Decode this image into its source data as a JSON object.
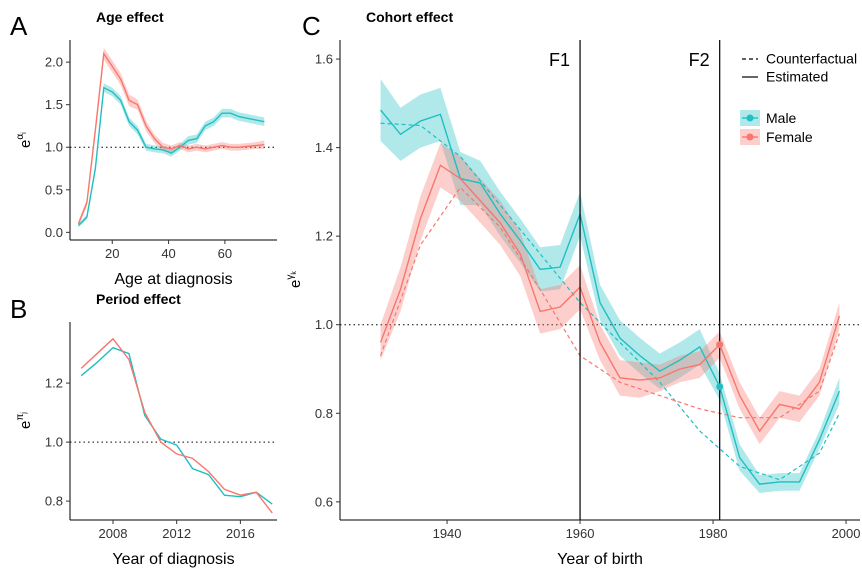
{
  "chart_data": [
    {
      "type": "line",
      "panel": "A",
      "title": "Age effect",
      "xlabel": "Age at diagnosis",
      "ylabel": {
        "base": "e",
        "sup": "α",
        "sub": "i"
      },
      "xlim": [
        5,
        78.5
      ],
      "xticks": [
        20,
        40,
        60
      ],
      "ylim": [
        -0.09,
        2.26
      ],
      "yticks": [
        {
          "value": 0,
          "label": "0.0"
        },
        0.5,
        {
          "value": 1,
          "label": "1.0"
        },
        1.5,
        {
          "value": 2,
          "label": "2.0"
        }
      ],
      "refline": 1,
      "x": [
        8,
        11,
        14,
        17,
        20,
        23,
        26,
        29,
        32,
        35,
        38,
        41,
        44,
        47,
        50,
        53,
        56,
        59,
        62,
        65,
        68,
        71,
        74
      ],
      "series": [
        {
          "name": "Male",
          "color": "#1fbfc4",
          "values": [
            0.08,
            0.18,
            0.75,
            1.7,
            1.65,
            1.55,
            1.3,
            1.2,
            1.0,
            0.98,
            0.97,
            0.93,
            1.0,
            1.08,
            1.1,
            1.25,
            1.3,
            1.4,
            1.4,
            1.36,
            1.34,
            1.32,
            1.3
          ],
          "error": [
            0.02,
            0.03,
            0.04,
            0.05,
            0.05,
            0.05,
            0.05,
            0.05,
            0.04,
            0.04,
            0.04,
            0.04,
            0.04,
            0.05,
            0.05,
            0.05,
            0.05,
            0.05,
            0.05,
            0.05,
            0.05,
            0.05,
            0.05
          ]
        },
        {
          "name": "Female",
          "color": "#f8766d",
          "values": [
            0.1,
            0.35,
            1.2,
            2.1,
            1.95,
            1.8,
            1.55,
            1.5,
            1.25,
            1.1,
            1.0,
            0.98,
            1.02,
            0.98,
            1.0,
            0.98,
            1.0,
            1.02,
            1.0,
            1.0,
            1.01,
            1.02,
            1.03
          ],
          "error": [
            0.03,
            0.04,
            0.06,
            0.07,
            0.07,
            0.07,
            0.07,
            0.06,
            0.06,
            0.05,
            0.05,
            0.04,
            0.04,
            0.04,
            0.04,
            0.04,
            0.04,
            0.04,
            0.04,
            0.04,
            0.04,
            0.04,
            0.05
          ]
        }
      ]
    },
    {
      "type": "line",
      "panel": "B",
      "title": "Period effect",
      "xlabel": "Year of diagnosis",
      "ylabel": {
        "base": "e",
        "sup": "π",
        "sub": "j"
      },
      "xlim": [
        2005.3,
        2018.3
      ],
      "xticks": [
        2008,
        2012,
        2016
      ],
      "ylim": [
        0.736,
        1.407
      ],
      "yticks": [
        0.8,
        {
          "value": 1,
          "label": "1.0"
        },
        1.2
      ],
      "refline": 1,
      "x": [
        2006,
        2007,
        2008,
        2009,
        2010,
        2011,
        2012,
        2013,
        2014,
        2015,
        2016,
        2017,
        2018
      ],
      "series": [
        {
          "name": "Male",
          "color": "#1fbfc4",
          "values": [
            1.225,
            1.27,
            1.32,
            1.3,
            1.09,
            1.01,
            0.99,
            0.91,
            0.89,
            0.82,
            0.815,
            0.83,
            0.79
          ]
        },
        {
          "name": "Female",
          "color": "#f8766d",
          "values": [
            1.25,
            1.3,
            1.35,
            1.28,
            1.1,
            1.0,
            0.96,
            0.945,
            0.9,
            0.84,
            0.82,
            0.83,
            0.76
          ]
        }
      ]
    },
    {
      "type": "line",
      "panel": "C",
      "title": "Cohort effect",
      "xlabel": "Year of birth",
      "ylabel": {
        "base": "e",
        "sup": "γ",
        "sub": "k"
      },
      "xlim": [
        1923.9,
        2002.1
      ],
      "xticks": [
        1940,
        1960,
        1980,
        2000
      ],
      "ylim": [
        0.559,
        1.643
      ],
      "yticks": [
        0.6,
        0.8,
        {
          "value": 1,
          "label": "1.0"
        },
        1.2,
        1.4,
        1.6
      ],
      "refline": 1,
      "vlines": [
        {
          "value": 1960,
          "label": "F1"
        },
        {
          "value": 1981,
          "label": "F2"
        }
      ],
      "linetype_legend": [
        "Counterfactual",
        "Estimated"
      ],
      "x": [
        1930,
        1933,
        1936,
        1939,
        1942,
        1945,
        1948,
        1951,
        1954,
        1957,
        1960,
        1963,
        1966,
        1969,
        1972,
        1975,
        1978,
        1981,
        1984,
        1987,
        1990,
        1993,
        1996,
        1999
      ],
      "series": [
        {
          "name": "Male",
          "color": "#1fbfc4",
          "values": [
            1.485,
            1.43,
            1.46,
            1.475,
            1.33,
            1.32,
            1.25,
            1.19,
            1.125,
            1.13,
            1.25,
            1.05,
            0.97,
            0.93,
            0.895,
            0.92,
            0.95,
            0.86,
            0.7,
            0.64,
            0.645,
            0.645,
            0.74,
            0.85
          ],
          "error": [
            0.07,
            0.06,
            0.06,
            0.06,
            0.06,
            0.05,
            0.05,
            0.05,
            0.05,
            0.05,
            0.05,
            0.04,
            0.04,
            0.04,
            0.04,
            0.04,
            0.04,
            0.03,
            0.03,
            0.02,
            0.02,
            0.02,
            0.02,
            0.03
          ]
        },
        {
          "name": "Female",
          "color": "#f8766d",
          "values": [
            0.96,
            1.08,
            1.24,
            1.36,
            1.33,
            1.28,
            1.23,
            1.16,
            1.03,
            1.04,
            1.085,
            0.96,
            0.88,
            0.875,
            0.88,
            0.9,
            0.91,
            0.955,
            0.84,
            0.76,
            0.82,
            0.81,
            0.87,
            1.02
          ],
          "error": [
            0.04,
            0.05,
            0.05,
            0.05,
            0.05,
            0.05,
            0.05,
            0.05,
            0.05,
            0.05,
            0.05,
            0.04,
            0.04,
            0.04,
            0.03,
            0.03,
            0.03,
            0.03,
            0.03,
            0.03,
            0.03,
            0.03,
            0.03,
            0.03
          ]
        }
      ],
      "counterfactual": {
        "x": [
          1930,
          1936,
          1942,
          1948,
          1954,
          1960,
          1966,
          1972,
          1978,
          1984,
          1990,
          1996,
          1999
        ],
        "series": [
          {
            "values": [
              1.455,
              1.45,
              1.38,
              1.27,
              1.16,
              1.05,
              0.96,
              0.87,
              0.76,
              0.68,
              0.65,
              0.71,
              0.8
            ]
          },
          {
            "values": [
              0.93,
              1.18,
              1.31,
              1.22,
              1.08,
              0.93,
              0.87,
              0.84,
              0.81,
              0.79,
              0.79,
              0.85,
              0.98
            ]
          }
        ]
      }
    }
  ]
}
